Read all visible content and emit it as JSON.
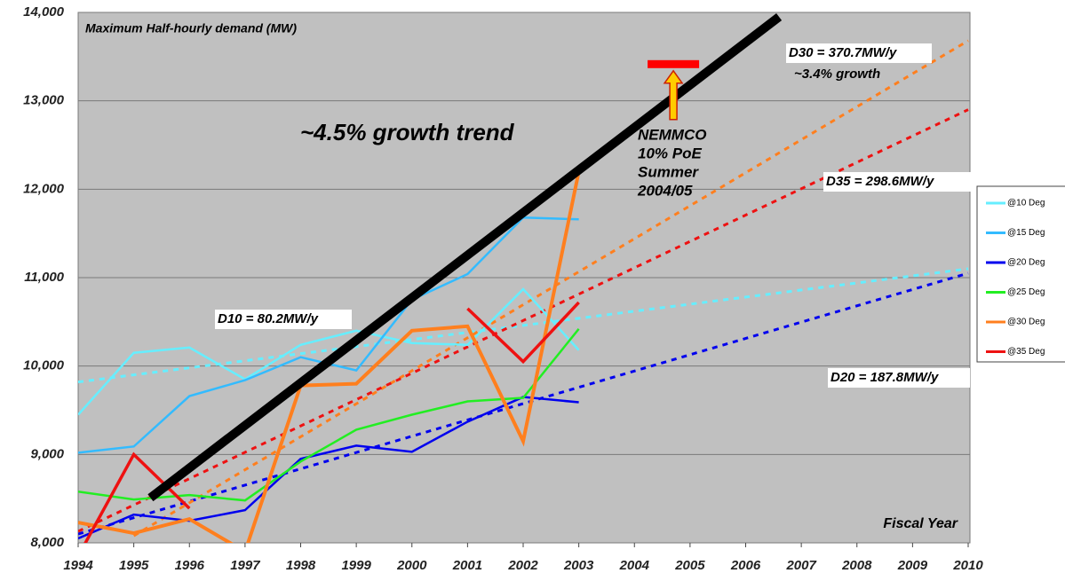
{
  "chart_data": {
    "type": "line",
    "title": "Maximum Half-hourly demand (MW)",
    "x_label": "Fiscal Year",
    "x": [
      1994,
      1995,
      1996,
      1997,
      1998,
      1999,
      2000,
      2001,
      2002,
      2003
    ],
    "series": [
      {
        "name": "@10 Deg",
        "color": "#66eeff",
        "values": [
          9450,
          10150,
          10210,
          9850,
          10240,
          10400,
          10260,
          10240,
          10870,
          10180
        ]
      },
      {
        "name": "@15 Deg",
        "color": "#33bbff",
        "values": [
          9020,
          9090,
          9660,
          9840,
          10100,
          9950,
          10750,
          11040,
          11680,
          11660
        ]
      },
      {
        "name": "@20 Deg",
        "color": "#0000ee",
        "values": [
          8050,
          8320,
          8250,
          8370,
          8950,
          9100,
          9030,
          9370,
          9650,
          9590
        ]
      },
      {
        "name": "@25 Deg",
        "color": "#22ee22",
        "values": [
          8580,
          8490,
          8540,
          8480,
          8920,
          9280,
          9450,
          9600,
          9640,
          10420
        ]
      },
      {
        "name": "@30 Deg",
        "color": "#ff7f1e",
        "values": [
          8230,
          8110,
          8270,
          7900,
          9780,
          9800,
          10400,
          10450,
          9150,
          12200
        ]
      },
      {
        "name": "@35 Deg",
        "color": "#ee1111",
        "values": [
          7850,
          9000,
          8390,
          null,
          null,
          null,
          null,
          10650,
          10050,
          10720
        ]
      }
    ],
    "trend_lines": [
      {
        "label": "D10 = 80.2MW/y",
        "color": "#66eeff",
        "x": [
          1994,
          2010
        ],
        "values": [
          9820,
          11100
        ]
      },
      {
        "label": "D20 = 187.8MW/y",
        "color": "#0000ee",
        "x": [
          1994,
          2010
        ],
        "values": [
          8100,
          11050
        ]
      },
      {
        "label": "D30 = 370.7MW/y",
        "sublabel": "~3.4% growth",
        "color": "#ff7f1e",
        "x": [
          1995,
          2010
        ],
        "values": [
          8080,
          13680
        ]
      },
      {
        "label": "D35 = 298.6MW/y",
        "color": "#ee1111",
        "x": [
          1994,
          2010
        ],
        "values": [
          8130,
          12900
        ]
      },
      {
        "label": "~4.5% growth trend",
        "color": "#000000",
        "x": [
          1995.3,
          2006.6
        ],
        "values": [
          8510,
          13950
        ]
      }
    ],
    "target": {
      "lines": [
        "NEMMCO",
        "10% PoE",
        "Summer",
        "2004/05"
      ],
      "x": 2004.7,
      "value": 13420,
      "color": "#ff0000"
    },
    "xlim": [
      1994,
      2010
    ],
    "xticks": [
      1994,
      1995,
      1996,
      1997,
      1998,
      1999,
      2000,
      2001,
      2002,
      2003,
      2004,
      2005,
      2006,
      2007,
      2008,
      2009,
      2010
    ],
    "ylim": [
      8000,
      14000
    ],
    "yticks": [
      {
        "value": 8000,
        "label": "8,000"
      },
      {
        "value": 9000,
        "label": "9,000"
      },
      {
        "value": 10000,
        "label": "10,000"
      },
      {
        "value": 11000,
        "label": "11,000"
      },
      {
        "value": 12000,
        "label": "12,000"
      },
      {
        "value": 13000,
        "label": "13,000"
      },
      {
        "value": 14000,
        "label": "14,000"
      }
    ],
    "grid": true
  }
}
